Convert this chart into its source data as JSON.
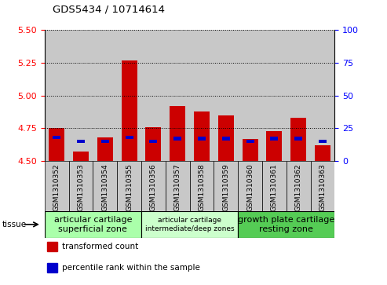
{
  "title": "GDS5434 / 10714614",
  "samples": [
    "GSM1310352",
    "GSM1310353",
    "GSM1310354",
    "GSM1310355",
    "GSM1310356",
    "GSM1310357",
    "GSM1310358",
    "GSM1310359",
    "GSM1310360",
    "GSM1310361",
    "GSM1310362",
    "GSM1310363"
  ],
  "red_values": [
    4.75,
    4.57,
    4.68,
    5.27,
    4.76,
    4.92,
    4.88,
    4.85,
    4.67,
    4.73,
    4.83,
    4.62
  ],
  "blue_percentile": [
    18,
    15,
    15,
    18,
    15,
    17,
    17,
    17,
    15,
    17,
    17,
    15
  ],
  "ylim_left": [
    4.5,
    5.5
  ],
  "ylim_right": [
    0,
    100
  ],
  "yticks_left": [
    4.5,
    4.75,
    5.0,
    5.25,
    5.5
  ],
  "yticks_right": [
    0,
    25,
    50,
    75,
    100
  ],
  "tissue_groups": [
    {
      "label": "articular cartilage\nsuperficial zone",
      "start": 0,
      "end": 3,
      "color": "#aaffaa",
      "fontsize": 8.0
    },
    {
      "label": "articular cartilage\nintermediate/deep zones",
      "start": 4,
      "end": 7,
      "color": "#ccffcc",
      "fontsize": 6.5
    },
    {
      "label": "growth plate cartilage\nresting zone",
      "start": 8,
      "end": 11,
      "color": "#55cc55",
      "fontsize": 8.0
    }
  ],
  "bar_bottom": 4.5,
  "bar_width": 0.65,
  "red_color": "#cc0000",
  "blue_color": "#0000cc",
  "bg_color": "#c8c8c8",
  "plot_bg": "#ffffff",
  "legend_items": [
    {
      "color": "#cc0000",
      "label": "transformed count"
    },
    {
      "color": "#0000cc",
      "label": "percentile rank within the sample"
    }
  ]
}
